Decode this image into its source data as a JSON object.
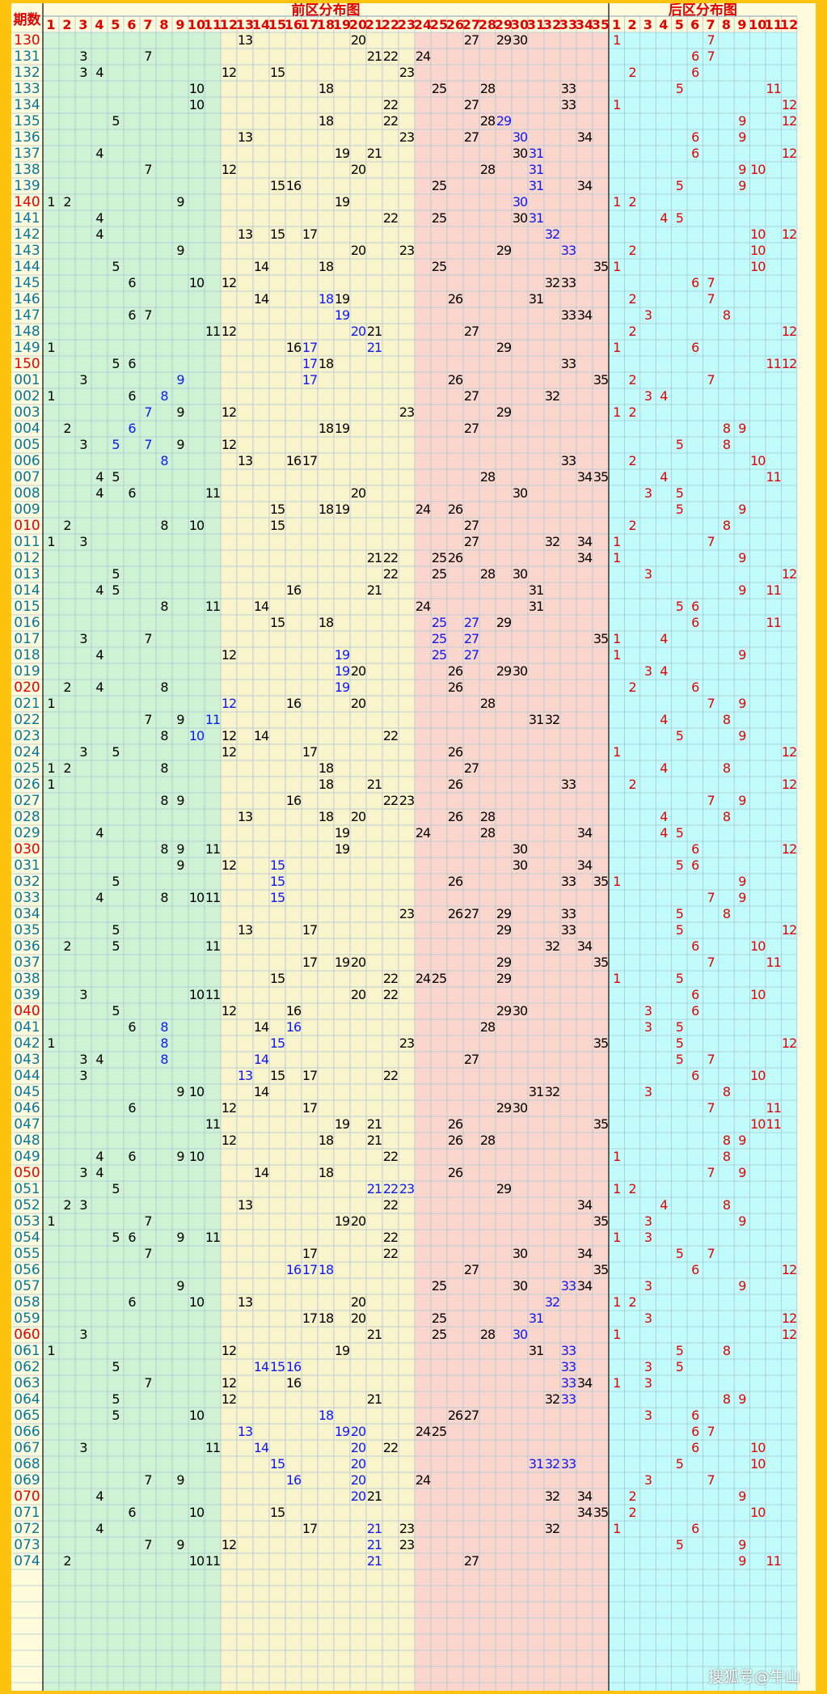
{
  "chart_data": {
    "type": "table",
    "period_header": "期数",
    "front_title": "前区分布图",
    "back_title": "后区分布图",
    "front_numbers": [
      "1",
      "2",
      "3",
      "4",
      "5",
      "6",
      "7",
      "8",
      "9",
      "10",
      "11",
      "12",
      "13",
      "14",
      "15",
      "16",
      "17",
      "18",
      "19",
      "20",
      "21",
      "22",
      "23",
      "24",
      "25",
      "26",
      "27",
      "28",
      "29",
      "30",
      "31",
      "32",
      "33",
      "34",
      "35"
    ],
    "back_numbers": [
      "1",
      "2",
      "3",
      "4",
      "5",
      "6",
      "7",
      "8",
      "9",
      "10",
      "11",
      "12"
    ],
    "colors": {
      "zone1": "#d0f2d4",
      "zone2": "#faf4cc",
      "zone3": "#fad6cd",
      "back": "#c2fcfa",
      "front_text": "#000000",
      "repeat_highlight": "#0a19ff",
      "back_text": "#e40000",
      "period_text": "#0078a0"
    },
    "note": "front values listed with 'b:' prefix were drawn in blue",
    "rows": [
      {
        "p": "130",
        "f": [
          13,
          20,
          27,
          29,
          30
        ],
        "b": [
          1,
          7
        ]
      },
      {
        "p": "131",
        "f": [
          3,
          7,
          21,
          22,
          24
        ],
        "b": [
          6,
          7
        ]
      },
      {
        "p": "132",
        "f": [
          3,
          4,
          12,
          15,
          23
        ],
        "b": [
          2,
          6
        ]
      },
      {
        "p": "133",
        "f": [
          10,
          18,
          25,
          28,
          33
        ],
        "b": [
          5,
          11
        ]
      },
      {
        "p": "134",
        "f": [
          10,
          22,
          27,
          33
        ],
        "b": [
          1,
          12
        ]
      },
      {
        "p": "135",
        "f": [
          5,
          18,
          22,
          28,
          "b:29"
        ],
        "b": [
          9,
          12
        ]
      },
      {
        "p": "136",
        "f": [
          13,
          23,
          27,
          "b:30",
          34
        ],
        "b": [
          6,
          9
        ]
      },
      {
        "p": "137",
        "f": [
          4,
          19,
          21,
          30,
          "b:31"
        ],
        "b": [
          6,
          12
        ]
      },
      {
        "p": "138",
        "f": [
          7,
          12,
          20,
          28,
          "b:31"
        ],
        "b": [
          9,
          10
        ]
      },
      {
        "p": "139",
        "f": [
          15,
          16,
          25,
          "b:31",
          34
        ],
        "b": [
          5,
          9
        ]
      },
      {
        "p": "140",
        "f": [
          1,
          2,
          9,
          19,
          "b:30"
        ],
        "b": [
          1,
          2
        ]
      },
      {
        "p": "141",
        "f": [
          4,
          22,
          25,
          30,
          "b:31"
        ],
        "b": [
          4,
          5
        ]
      },
      {
        "p": "142",
        "f": [
          4,
          13,
          15,
          17,
          "b:32"
        ],
        "b": [
          10,
          12
        ]
      },
      {
        "p": "143",
        "f": [
          9,
          20,
          23,
          29,
          "b:33"
        ],
        "b": [
          2,
          10
        ]
      },
      {
        "p": "144",
        "f": [
          5,
          14,
          18,
          25,
          35
        ],
        "b": [
          1,
          10
        ]
      },
      {
        "p": "145",
        "f": [
          6,
          10,
          12,
          32,
          33
        ],
        "b": [
          6,
          7
        ]
      },
      {
        "p": "146",
        "f": [
          14,
          "b:18",
          19,
          26,
          31
        ],
        "b": [
          2,
          7
        ]
      },
      {
        "p": "147",
        "f": [
          6,
          7,
          "b:19",
          33,
          34
        ],
        "b": [
          3,
          8
        ]
      },
      {
        "p": "148",
        "f": [
          11,
          12,
          "b:20",
          21,
          27
        ],
        "b": [
          2,
          12
        ]
      },
      {
        "p": "149",
        "f": [
          1,
          16,
          "b:17",
          "b:21",
          29
        ],
        "b": [
          1,
          6
        ]
      },
      {
        "p": "150",
        "f": [
          5,
          6,
          "b:17",
          18,
          33
        ],
        "b": [
          11,
          12
        ]
      },
      {
        "p": "001",
        "f": [
          3,
          "b:9",
          "b:17",
          26,
          35
        ],
        "b": [
          2,
          7
        ]
      },
      {
        "p": "002",
        "f": [
          1,
          6,
          "b:8",
          27,
          32
        ],
        "b": [
          3,
          4
        ]
      },
      {
        "p": "003",
        "f": [
          "b:7",
          9,
          12,
          23,
          29
        ],
        "b": [
          1,
          2
        ]
      },
      {
        "p": "004",
        "f": [
          2,
          "b:6",
          18,
          19,
          27
        ],
        "b": [
          8,
          9
        ]
      },
      {
        "p": "005",
        "f": [
          3,
          "b:5",
          "b:7",
          9,
          12
        ],
        "b": [
          5,
          8
        ]
      },
      {
        "p": "006",
        "f": [
          "b:8",
          13,
          16,
          17,
          33
        ],
        "b": [
          2,
          10
        ]
      },
      {
        "p": "007",
        "f": [
          4,
          5,
          28,
          34,
          35
        ],
        "b": [
          4,
          11
        ]
      },
      {
        "p": "008",
        "f": [
          4,
          6,
          11,
          20,
          30
        ],
        "b": [
          3,
          5
        ]
      },
      {
        "p": "009",
        "f": [
          15,
          18,
          19,
          24,
          26
        ],
        "b": [
          5,
          9
        ]
      },
      {
        "p": "010",
        "f": [
          2,
          8,
          10,
          15,
          27
        ],
        "b": [
          2,
          8
        ]
      },
      {
        "p": "011",
        "f": [
          1,
          3,
          27,
          32,
          34
        ],
        "b": [
          1,
          7
        ]
      },
      {
        "p": "012",
        "f": [
          21,
          22,
          25,
          26,
          34
        ],
        "b": [
          1,
          9
        ]
      },
      {
        "p": "013",
        "f": [
          5,
          22,
          25,
          28,
          30
        ],
        "b": [
          3,
          12
        ]
      },
      {
        "p": "014",
        "f": [
          4,
          5,
          16,
          21,
          31
        ],
        "b": [
          9,
          11
        ]
      },
      {
        "p": "015",
        "f": [
          8,
          11,
          14,
          24,
          31
        ],
        "b": [
          5,
          6
        ]
      },
      {
        "p": "016",
        "f": [
          15,
          18,
          "b:25",
          "b:27",
          29
        ],
        "b": [
          6,
          11
        ]
      },
      {
        "p": "017",
        "f": [
          3,
          7,
          "b:25",
          "b:27",
          35
        ],
        "b": [
          1,
          4
        ]
      },
      {
        "p": "018",
        "f": [
          4,
          12,
          "b:19",
          "b:25",
          "b:27"
        ],
        "b": [
          1,
          9
        ]
      },
      {
        "p": "019",
        "f": [
          "b:19",
          20,
          26,
          29,
          30
        ],
        "b": [
          3,
          4
        ]
      },
      {
        "p": "020",
        "f": [
          2,
          4,
          8,
          "b:19",
          26
        ],
        "b": [
          2,
          6
        ]
      },
      {
        "p": "021",
        "f": [
          1,
          "b:12",
          16,
          20,
          28
        ],
        "b": [
          7,
          9
        ]
      },
      {
        "p": "022",
        "f": [
          7,
          9,
          "b:11",
          31,
          32
        ],
        "b": [
          4,
          8
        ]
      },
      {
        "p": "023",
        "f": [
          8,
          "b:10",
          12,
          14,
          22
        ],
        "b": [
          5,
          9
        ]
      },
      {
        "p": "024",
        "f": [
          3,
          5,
          12,
          17,
          26
        ],
        "b": [
          1,
          12
        ]
      },
      {
        "p": "025",
        "f": [
          1,
          2,
          8,
          18,
          27
        ],
        "b": [
          4,
          8
        ]
      },
      {
        "p": "026",
        "f": [
          1,
          18,
          21,
          26,
          33
        ],
        "b": [
          2,
          12
        ]
      },
      {
        "p": "027",
        "f": [
          8,
          9,
          16,
          22,
          23
        ],
        "b": [
          7,
          9
        ]
      },
      {
        "p": "028",
        "f": [
          13,
          18,
          20,
          26,
          28
        ],
        "b": [
          4,
          8
        ]
      },
      {
        "p": "029",
        "f": [
          4,
          19,
          24,
          28,
          34
        ],
        "b": [
          4,
          5
        ]
      },
      {
        "p": "030",
        "f": [
          8,
          9,
          11,
          19,
          30
        ],
        "b": [
          6,
          12
        ]
      },
      {
        "p": "031",
        "f": [
          9,
          12,
          "b:15",
          30,
          34
        ],
        "b": [
          5,
          6
        ]
      },
      {
        "p": "032",
        "f": [
          5,
          "b:15",
          26,
          33,
          35
        ],
        "b": [
          1,
          9
        ]
      },
      {
        "p": "033",
        "f": [
          4,
          8,
          10,
          11,
          "b:15"
        ],
        "b": [
          7,
          9
        ]
      },
      {
        "p": "034",
        "f": [
          23,
          26,
          27,
          29,
          33
        ],
        "b": [
          5,
          8
        ]
      },
      {
        "p": "035",
        "f": [
          5,
          13,
          17,
          29,
          33
        ],
        "b": [
          5,
          12
        ]
      },
      {
        "p": "036",
        "f": [
          2,
          5,
          11,
          32,
          34
        ],
        "b": [
          6,
          10
        ]
      },
      {
        "p": "037",
        "f": [
          17,
          19,
          20,
          29,
          35
        ],
        "b": [
          7,
          11
        ]
      },
      {
        "p": "038",
        "f": [
          15,
          22,
          24,
          25,
          29
        ],
        "b": [
          1,
          5
        ]
      },
      {
        "p": "039",
        "f": [
          3,
          10,
          11,
          20,
          22
        ],
        "b": [
          6,
          10
        ]
      },
      {
        "p": "040",
        "f": [
          5,
          12,
          16,
          29,
          30
        ],
        "b": [
          3,
          6
        ]
      },
      {
        "p": "041",
        "f": [
          6,
          "b:8",
          14,
          "b:16",
          28
        ],
        "b": [
          3,
          5
        ]
      },
      {
        "p": "042",
        "f": [
          1,
          "b:8",
          "b:15",
          23,
          35
        ],
        "b": [
          5,
          12
        ]
      },
      {
        "p": "043",
        "f": [
          3,
          4,
          "b:8",
          "b:14",
          27
        ],
        "b": [
          5,
          7
        ]
      },
      {
        "p": "044",
        "f": [
          3,
          "b:13",
          15,
          17,
          22
        ],
        "b": [
          6,
          10
        ]
      },
      {
        "p": "045",
        "f": [
          9,
          10,
          14,
          31,
          32
        ],
        "b": [
          3,
          8
        ]
      },
      {
        "p": "046",
        "f": [
          6,
          12,
          17,
          29,
          30
        ],
        "b": [
          7,
          11
        ]
      },
      {
        "p": "047",
        "f": [
          11,
          19,
          21,
          26,
          35
        ],
        "b": [
          10,
          11
        ]
      },
      {
        "p": "048",
        "f": [
          12,
          18,
          21,
          26,
          28
        ],
        "b": [
          8,
          9
        ]
      },
      {
        "p": "049",
        "f": [
          4,
          6,
          9,
          10,
          22
        ],
        "b": [
          1,
          8
        ]
      },
      {
        "p": "050",
        "f": [
          3,
          4,
          14,
          18,
          26
        ],
        "b": [
          7,
          9
        ]
      },
      {
        "p": "051",
        "f": [
          5,
          "b:21",
          "b:22",
          "b:23",
          29
        ],
        "b": [
          1,
          2
        ]
      },
      {
        "p": "052",
        "f": [
          2,
          3,
          13,
          22,
          34
        ],
        "b": [
          4,
          8
        ]
      },
      {
        "p": "053",
        "f": [
          1,
          7,
          19,
          20,
          35
        ],
        "b": [
          3,
          9
        ]
      },
      {
        "p": "054",
        "f": [
          5,
          6,
          9,
          11,
          22
        ],
        "b": [
          1,
          3
        ]
      },
      {
        "p": "055",
        "f": [
          7,
          17,
          22,
          30,
          34
        ],
        "b": [
          5,
          7
        ]
      },
      {
        "p": "056",
        "f": [
          "b:16",
          "b:17",
          "b:18",
          27,
          35
        ],
        "b": [
          6,
          12
        ]
      },
      {
        "p": "057",
        "f": [
          9,
          25,
          30,
          "b:33",
          34
        ],
        "b": [
          3,
          9
        ]
      },
      {
        "p": "058",
        "f": [
          6,
          10,
          13,
          20,
          "b:32"
        ],
        "b": [
          1,
          2
        ]
      },
      {
        "p": "059",
        "f": [
          17,
          18,
          20,
          25,
          "b:31"
        ],
        "b": [
          3,
          12
        ]
      },
      {
        "p": "060",
        "f": [
          3,
          21,
          25,
          28,
          "b:30"
        ],
        "b": [
          1,
          12
        ]
      },
      {
        "p": "061",
        "f": [
          1,
          12,
          19,
          31,
          "b:33"
        ],
        "b": [
          5,
          8
        ]
      },
      {
        "p": "062",
        "f": [
          5,
          "b:14",
          "b:15",
          "b:16",
          "b:33"
        ],
        "b": [
          3,
          5
        ]
      },
      {
        "p": "063",
        "f": [
          7,
          12,
          16,
          "b:33",
          34
        ],
        "b": [
          1,
          3
        ]
      },
      {
        "p": "064",
        "f": [
          5,
          12,
          21,
          32,
          "b:33"
        ],
        "b": [
          8,
          9
        ]
      },
      {
        "p": "065",
        "f": [
          5,
          10,
          "b:18",
          26,
          27
        ],
        "b": [
          3,
          6
        ]
      },
      {
        "p": "066",
        "f": [
          "b:13",
          "b:19",
          "b:20",
          24,
          25
        ],
        "b": [
          6,
          7
        ]
      },
      {
        "p": "067",
        "f": [
          3,
          11,
          "b:14",
          "b:20",
          22
        ],
        "b": [
          6,
          10
        ]
      },
      {
        "p": "068",
        "f": [
          "b:15",
          "b:20",
          "b:31",
          "b:32",
          "b:33"
        ],
        "b": [
          5,
          10
        ]
      },
      {
        "p": "069",
        "f": [
          7,
          9,
          "b:16",
          "b:20",
          24
        ],
        "b": [
          3,
          7
        ]
      },
      {
        "p": "070",
        "f": [
          4,
          "b:20",
          21,
          32,
          34
        ],
        "b": [
          2,
          9
        ]
      },
      {
        "p": "071",
        "f": [
          6,
          10,
          15,
          34,
          35
        ],
        "b": [
          2,
          10
        ]
      },
      {
        "p": "072",
        "f": [
          4,
          17,
          "b:21",
          23,
          32
        ],
        "b": [
          1,
          6
        ]
      },
      {
        "p": "073",
        "f": [
          7,
          9,
          12,
          "b:21",
          23
        ],
        "b": [
          5,
          9
        ]
      },
      {
        "p": "074",
        "f": [
          2,
          10,
          11,
          "b:21",
          27
        ],
        "b": [
          9,
          11
        ]
      }
    ],
    "red_periods": [
      "130",
      "140",
      "150",
      "010",
      "020",
      "030",
      "040",
      "050",
      "060",
      "070"
    ]
  },
  "watermark": "搜狐号@牛山"
}
